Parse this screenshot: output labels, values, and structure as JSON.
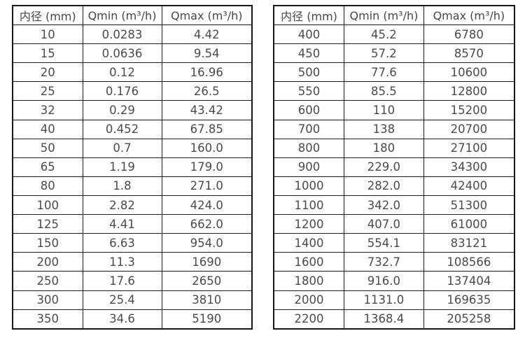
{
  "columns": [
    "内径 (mm)",
    "Qmin (m³/h)",
    "Qmax (m³/h)"
  ],
  "tables": [
    {
      "name": "small-diameter-flow-ranges",
      "rows": [
        [
          "10",
          "0.0283",
          "4.42"
        ],
        [
          "15",
          "0.0636",
          "9.54"
        ],
        [
          "20",
          "0.12",
          "16.96"
        ],
        [
          "25",
          "0.176",
          "26.5"
        ],
        [
          "32",
          "0.29",
          "43.42"
        ],
        [
          "40",
          "0.452",
          "67.85"
        ],
        [
          "50",
          "0.7",
          "160.0"
        ],
        [
          "65",
          "1.19",
          "179.0"
        ],
        [
          "80",
          "1.8",
          "271.0"
        ],
        [
          "100",
          "2.82",
          "424.0"
        ],
        [
          "125",
          "4.41",
          "662.0"
        ],
        [
          "150",
          "6.63",
          "954.0"
        ],
        [
          "200",
          "11.3",
          "1690"
        ],
        [
          "250",
          "17.6",
          "2650"
        ],
        [
          "300",
          "25.4",
          "3810"
        ],
        [
          "350",
          "34.6",
          "5190"
        ]
      ]
    },
    {
      "name": "large-diameter-flow-ranges",
      "rows": [
        [
          "400",
          "45.2",
          "6780"
        ],
        [
          "450",
          "57.2",
          "8570"
        ],
        [
          "500",
          "77.6",
          "10600"
        ],
        [
          "550",
          "85.5",
          "12800"
        ],
        [
          "600",
          "110",
          "15200"
        ],
        [
          "700",
          "138",
          "20700"
        ],
        [
          "800",
          "180",
          "27100"
        ],
        [
          "900",
          "229.0",
          "34300"
        ],
        [
          "1000",
          "282.0",
          "42400"
        ],
        [
          "1100",
          "342.0",
          "51300"
        ],
        [
          "1200",
          "407.0",
          "61000"
        ],
        [
          "1400",
          "554.1",
          "83121"
        ],
        [
          "1600",
          "732.7",
          "108566"
        ],
        [
          "1800",
          "916.0",
          "137404"
        ],
        [
          "2000",
          "1131.0",
          "169635"
        ],
        [
          "2200",
          "1368.4",
          "205258"
        ]
      ]
    }
  ],
  "colors": {
    "border": "#1d1d1d",
    "text": "#4b4b4b",
    "background": "#ffffff"
  }
}
